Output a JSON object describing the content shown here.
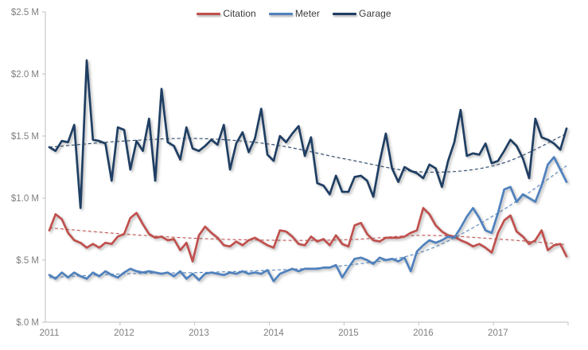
{
  "chart_data": {
    "type": "line",
    "title": "",
    "xlabel": "",
    "ylabel": "",
    "x_unit": "month",
    "x_range_start": "2011-01",
    "x_range_end": "2017-12",
    "points_per_series": 84,
    "ylim": [
      0,
      2.5
    ],
    "grid": false,
    "legend_position": "top-center",
    "axis_color": "#bfbfbf",
    "axis_label_color": "#7f7f7f",
    "y_ticks": [
      {
        "label": "$2.5 M",
        "value": 2.5
      },
      {
        "label": "$2.0 M",
        "value": 2.0
      },
      {
        "label": "$1.5 M",
        "value": 1.5
      },
      {
        "label": "$1.0 M",
        "value": 1.0
      },
      {
        "label": "$.5 M",
        "value": 0.5
      },
      {
        "label": "$.0 M",
        "value": 0.0
      }
    ],
    "x_tick_labels": [
      "2011",
      "2012",
      "2013",
      "2014",
      "2015",
      "2016",
      "2017"
    ],
    "series": [
      {
        "name": "Citation",
        "color": "#c0504d",
        "values": [
          0.74,
          0.87,
          0.83,
          0.72,
          0.66,
          0.64,
          0.6,
          0.63,
          0.6,
          0.64,
          0.63,
          0.69,
          0.71,
          0.84,
          0.88,
          0.79,
          0.71,
          0.68,
          0.69,
          0.66,
          0.67,
          0.58,
          0.64,
          0.49,
          0.7,
          0.77,
          0.72,
          0.68,
          0.62,
          0.61,
          0.65,
          0.62,
          0.66,
          0.68,
          0.65,
          0.62,
          0.6,
          0.74,
          0.73,
          0.69,
          0.63,
          0.62,
          0.69,
          0.65,
          0.67,
          0.62,
          0.7,
          0.63,
          0.61,
          0.78,
          0.8,
          0.71,
          0.66,
          0.65,
          0.68,
          0.68,
          0.68,
          0.69,
          0.72,
          0.74,
          0.92,
          0.87,
          0.78,
          0.73,
          0.7,
          0.69,
          0.66,
          0.64,
          0.61,
          0.63,
          0.6,
          0.56,
          0.72,
          0.82,
          0.86,
          0.73,
          0.69,
          0.63,
          0.66,
          0.74,
          0.58,
          0.62,
          0.63,
          0.53
        ]
      },
      {
        "name": "Meter",
        "color": "#4f81bd",
        "values": [
          0.38,
          0.35,
          0.4,
          0.36,
          0.4,
          0.37,
          0.35,
          0.4,
          0.37,
          0.41,
          0.38,
          0.36,
          0.4,
          0.43,
          0.41,
          0.4,
          0.41,
          0.4,
          0.39,
          0.4,
          0.37,
          0.41,
          0.35,
          0.39,
          0.34,
          0.39,
          0.4,
          0.39,
          0.38,
          0.4,
          0.39,
          0.41,
          0.39,
          0.4,
          0.39,
          0.42,
          0.33,
          0.39,
          0.41,
          0.43,
          0.41,
          0.43,
          0.43,
          0.43,
          0.44,
          0.44,
          0.46,
          0.36,
          0.44,
          0.51,
          0.52,
          0.5,
          0.47,
          0.52,
          0.5,
          0.51,
          0.49,
          0.52,
          0.41,
          0.57,
          0.62,
          0.66,
          0.64,
          0.66,
          0.69,
          0.68,
          0.76,
          0.85,
          0.92,
          0.84,
          0.74,
          0.72,
          0.88,
          1.07,
          1.09,
          0.97,
          1.03,
          1.0,
          0.97,
          1.1,
          1.27,
          1.33,
          1.23,
          1.13
        ]
      },
      {
        "name": "Garage",
        "color": "#1f3e63",
        "values": [
          1.41,
          1.38,
          1.46,
          1.45,
          1.59,
          0.92,
          2.11,
          1.47,
          1.46,
          1.44,
          1.14,
          1.57,
          1.55,
          1.23,
          1.46,
          1.38,
          1.64,
          1.14,
          1.88,
          1.45,
          1.42,
          1.31,
          1.57,
          1.4,
          1.38,
          1.42,
          1.47,
          1.43,
          1.59,
          1.23,
          1.44,
          1.53,
          1.37,
          1.48,
          1.72,
          1.35,
          1.3,
          1.5,
          1.45,
          1.52,
          1.58,
          1.34,
          1.49,
          1.12,
          1.1,
          1.03,
          1.18,
          1.05,
          1.05,
          1.17,
          1.18,
          1.14,
          1.01,
          1.29,
          1.52,
          1.24,
          1.13,
          1.25,
          1.22,
          1.2,
          1.16,
          1.27,
          1.24,
          1.09,
          1.3,
          1.45,
          1.71,
          1.34,
          1.36,
          1.35,
          1.44,
          1.28,
          1.3,
          1.38,
          1.47,
          1.42,
          1.32,
          1.16,
          1.64,
          1.49,
          1.47,
          1.44,
          1.39,
          1.56
        ]
      }
    ],
    "trendlines": [
      {
        "name": "Citation trend",
        "color": "#c0504d",
        "yearly_values": [
          0.76,
          0.71,
          0.675,
          0.66,
          0.665,
          0.7,
          0.67,
          0.625
        ]
      },
      {
        "name": "Meter trend",
        "color": "#4f81bd",
        "yearly_values": [
          0.36,
          0.39,
          0.4,
          0.42,
          0.46,
          0.57,
          0.88,
          1.26
        ]
      },
      {
        "name": "Garage trend",
        "color": "#1f3e63",
        "yearly_values": [
          1.41,
          1.46,
          1.48,
          1.43,
          1.31,
          1.21,
          1.27,
          1.52
        ]
      }
    ]
  },
  "legend": {
    "items": [
      {
        "label": "Citation",
        "color": "#c0504d"
      },
      {
        "label": "Meter",
        "color": "#4f81bd"
      },
      {
        "label": "Garage",
        "color": "#1f3e63"
      }
    ]
  }
}
